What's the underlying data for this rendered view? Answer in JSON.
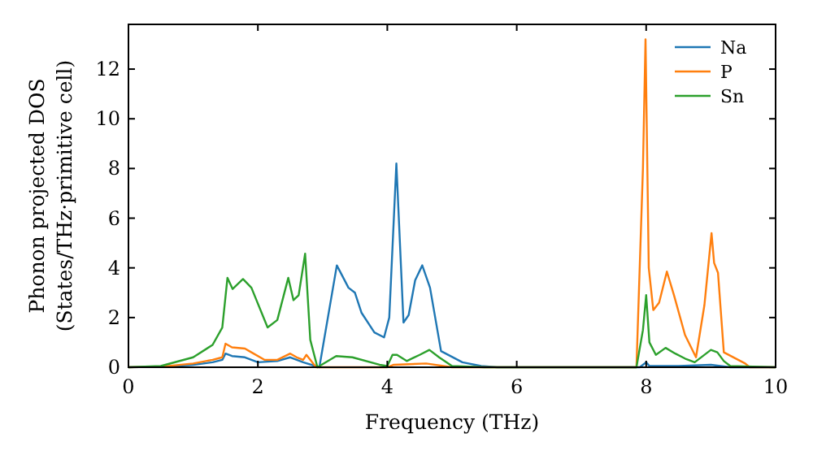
{
  "chart_data": {
    "type": "line",
    "xlabel": "Frequency (THz)",
    "ylabel": "Phonon projected DOS\n(States/THz·primitive cell)",
    "xlim": [
      0,
      10
    ],
    "ylim": [
      0,
      13.8
    ],
    "xticks": [
      0,
      2,
      4,
      6,
      8,
      10
    ],
    "yticks": [
      0,
      2,
      4,
      6,
      8,
      10,
      12
    ],
    "grid": false,
    "legend": "top right",
    "series": [
      {
        "name": "Na",
        "color": "#1f77b4",
        "x": [
          0,
          0.5,
          1.0,
          1.3,
          1.45,
          1.5,
          1.6,
          1.8,
          2.0,
          2.3,
          2.5,
          2.6,
          2.7,
          2.95,
          3.22,
          3.4,
          3.5,
          3.6,
          3.8,
          3.95,
          4.03,
          4.14,
          4.25,
          4.33,
          4.43,
          4.54,
          4.66,
          4.83,
          5.16,
          5.45,
          5.7,
          7.9,
          7.95,
          8.0,
          8.05,
          8.5,
          9.0,
          9.3,
          10
        ],
        "values": [
          0,
          0.02,
          0.1,
          0.2,
          0.3,
          0.55,
          0.45,
          0.4,
          0.2,
          0.25,
          0.4,
          0.3,
          0.2,
          0,
          4.1,
          3.2,
          3.0,
          2.2,
          1.4,
          1.2,
          2.0,
          8.2,
          1.8,
          2.1,
          3.5,
          4.1,
          3.2,
          0.65,
          0.2,
          0.05,
          0,
          0,
          0.1,
          0.2,
          0.05,
          0.05,
          0.1,
          0,
          0
        ]
      },
      {
        "name": "P",
        "color": "#ff7f0e",
        "x": [
          0,
          0.5,
          1.0,
          1.3,
          1.45,
          1.5,
          1.6,
          1.8,
          1.9,
          2.1,
          2.3,
          2.5,
          2.6,
          2.7,
          2.75,
          2.9,
          4.0,
          4.1,
          4.6,
          5.0,
          7.85,
          7.95,
          7.99,
          8.04,
          8.11,
          8.2,
          8.32,
          8.43,
          8.6,
          8.77,
          8.9,
          9.01,
          9.05,
          9.11,
          9.2,
          9.53,
          9.6,
          10
        ],
        "values": [
          0,
          0.02,
          0.15,
          0.3,
          0.4,
          0.95,
          0.8,
          0.75,
          0.6,
          0.3,
          0.3,
          0.55,
          0.4,
          0.3,
          0.5,
          0,
          0,
          0.1,
          0.15,
          0,
          0,
          8.0,
          13.2,
          4.0,
          2.3,
          2.6,
          3.85,
          2.9,
          1.3,
          0.4,
          2.5,
          5.4,
          4.2,
          3.8,
          0.6,
          0.15,
          0,
          0
        ]
      },
      {
        "name": "Sn",
        "color": "#2ca02c",
        "x": [
          0,
          0.5,
          1.0,
          1.3,
          1.45,
          1.53,
          1.61,
          1.77,
          1.9,
          2.15,
          2.3,
          2.47,
          2.55,
          2.63,
          2.73,
          2.81,
          2.92,
          3.21,
          3.46,
          3.88,
          4.0,
          4.08,
          4.15,
          4.3,
          4.5,
          4.65,
          4.8,
          5.0,
          5.5,
          7.85,
          7.95,
          8.0,
          8.05,
          8.15,
          8.3,
          8.45,
          8.6,
          8.75,
          9.0,
          9.1,
          9.2,
          9.3,
          10
        ],
        "values": [
          0,
          0.05,
          0.4,
          0.9,
          1.6,
          3.6,
          3.15,
          3.55,
          3.2,
          1.6,
          1.9,
          3.6,
          2.7,
          2.9,
          4.57,
          1.1,
          0,
          0.45,
          0.4,
          0.1,
          0.05,
          0.5,
          0.5,
          0.25,
          0.5,
          0.7,
          0.4,
          0.05,
          0,
          0,
          1.5,
          2.9,
          1.0,
          0.5,
          0.78,
          0.55,
          0.35,
          0.2,
          0.7,
          0.6,
          0.25,
          0.05,
          0
        ]
      }
    ]
  }
}
